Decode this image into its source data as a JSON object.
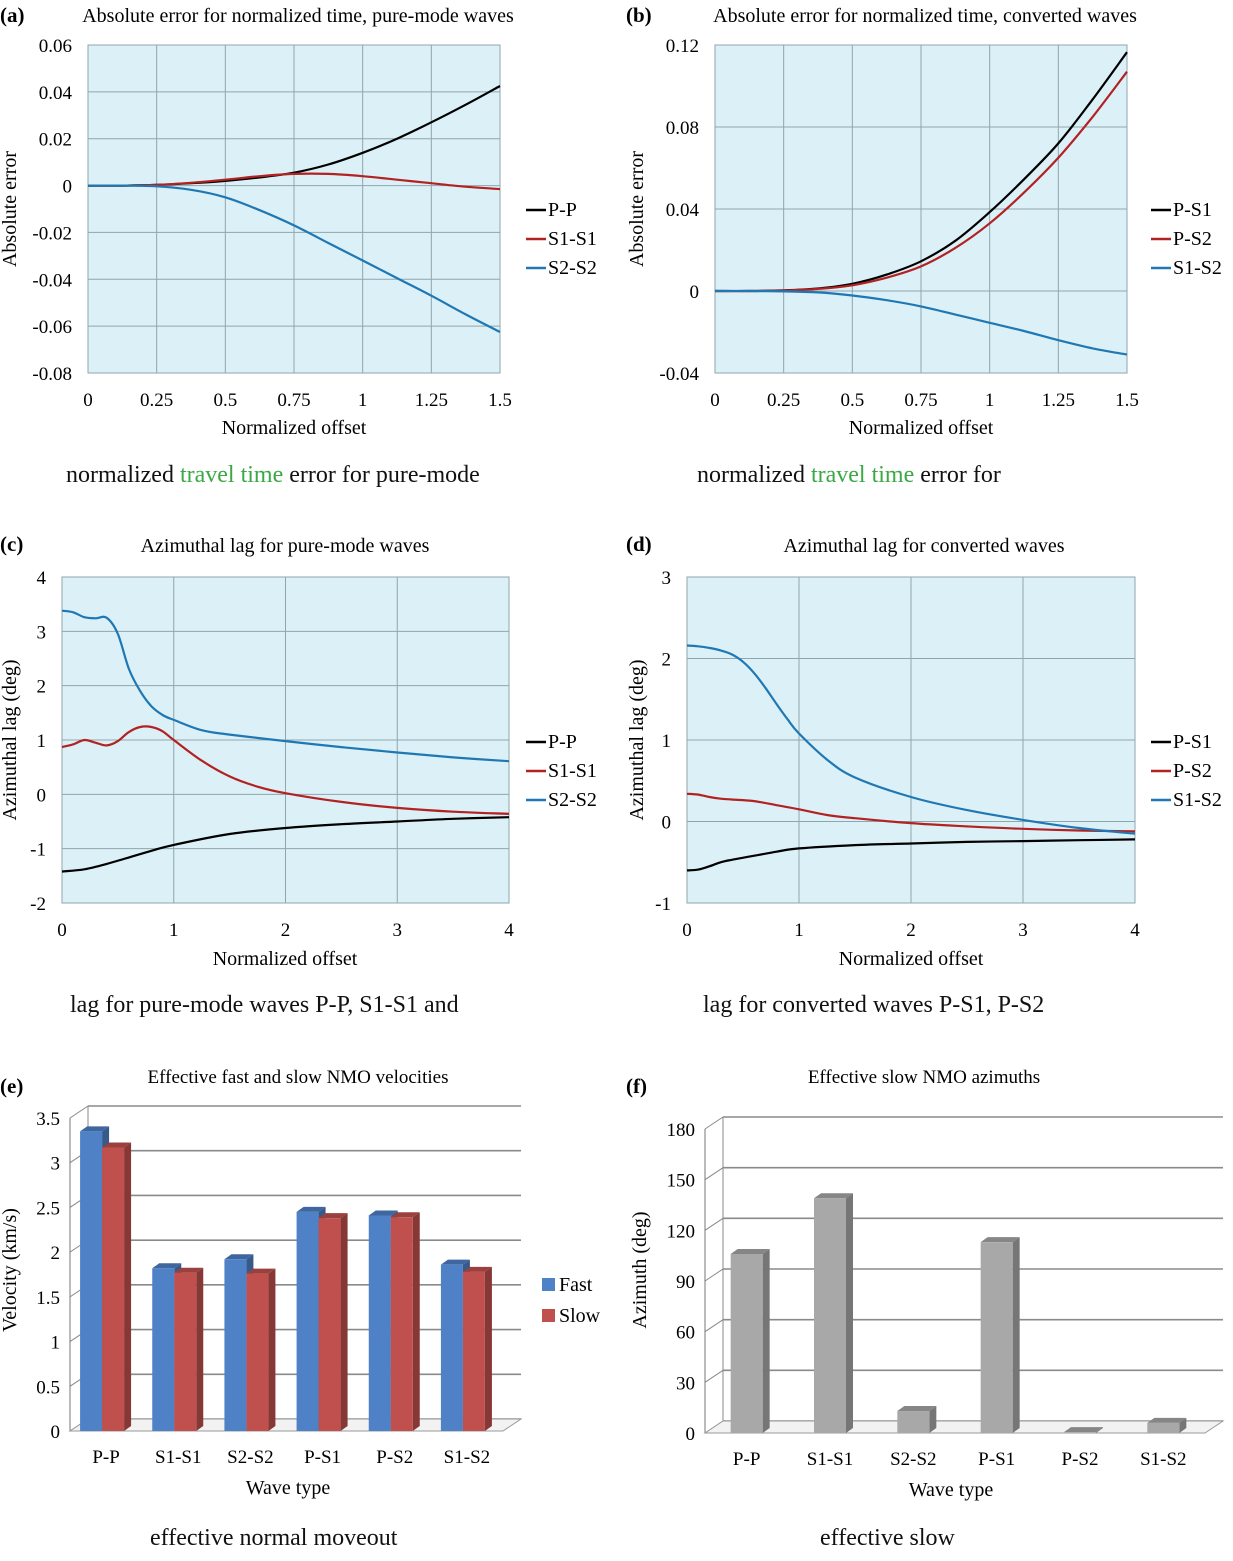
{
  "captions": [
    {
      "pre": "normalized ",
      "hl": "travel time",
      "post": " error for pure-mode"
    },
    {
      "pre": "normalized ",
      "hl": "travel time",
      "post": " error for"
    },
    {
      "pre": "lag for pure-mode waves P-P, S1-S1 and",
      "hl": "",
      "post": ""
    },
    {
      "pre": "lag for converted waves P-S1, P-S2",
      "hl": "",
      "post": ""
    },
    {
      "pre": "effective normal moveout",
      "hl": "",
      "post": ""
    },
    {
      "pre": "effective slow",
      "hl": "",
      "post": ""
    }
  ],
  "colors": {
    "plot_bg": "#dcf0f7",
    "grid": "#8fa6ad",
    "black": "#000000",
    "red": "#b22222",
    "blue": "#1f78b4",
    "fast": "#4f81c7",
    "slow": "#c0504d",
    "gray_bar": "#a8a8a8",
    "highlight": "#3aa845"
  },
  "chart_data": [
    {
      "panel": "(a)",
      "type": "line",
      "title": "Absolute error for normalized time, pure-mode waves",
      "xlabel": "Normalized offset",
      "ylabel": "Absolute error",
      "xlim": [
        0,
        1.5
      ],
      "ylim": [
        -0.08,
        0.06
      ],
      "xticks": [
        "0",
        "0.25",
        "0.5",
        "0.75",
        "1",
        "1.25",
        "1.5"
      ],
      "yticks": [
        "-0.08",
        "-0.06",
        "-0.04",
        "-0.02",
        "0",
        "0.02",
        "0.04",
        "0.06"
      ],
      "legend": "right",
      "grid": true,
      "x": [
        0,
        0.125,
        0.25,
        0.375,
        0.5,
        0.625,
        0.75,
        0.875,
        1.0,
        1.125,
        1.25,
        1.375,
        1.5
      ],
      "series": [
        {
          "name": "P-P",
          "color": "black",
          "values": [
            0,
            0,
            0.0003,
            0.001,
            0.002,
            0.0035,
            0.0055,
            0.009,
            0.014,
            0.02,
            0.027,
            0.0345,
            0.0425
          ]
        },
        {
          "name": "S1-S1",
          "color": "red",
          "values": [
            0,
            0,
            0.0003,
            0.0012,
            0.0025,
            0.004,
            0.005,
            0.005,
            0.004,
            0.0025,
            0.001,
            -0.0005,
            -0.0015
          ]
        },
        {
          "name": "S2-S2",
          "color": "blue",
          "values": [
            0,
            0,
            -0.0003,
            -0.0018,
            -0.005,
            -0.0105,
            -0.017,
            -0.0245,
            -0.032,
            -0.0395,
            -0.047,
            -0.055,
            -0.0625
          ]
        }
      ]
    },
    {
      "panel": "(b)",
      "type": "line",
      "title": "Absolute error for normalized time, converted waves",
      "xlabel": "Normalized offset",
      "ylabel": "Absolute error",
      "xlim": [
        0,
        1.5
      ],
      "ylim": [
        -0.04,
        0.12
      ],
      "xticks": [
        "0",
        "0.25",
        "0.5",
        "0.75",
        "1",
        "1.25",
        "1.5"
      ],
      "yticks": [
        "-0.04",
        "0",
        "0.04",
        "0.08",
        "0.12"
      ],
      "legend": "right",
      "grid": true,
      "x": [
        0,
        0.125,
        0.25,
        0.375,
        0.5,
        0.625,
        0.75,
        0.875,
        1.0,
        1.125,
        1.25,
        1.375,
        1.5
      ],
      "series": [
        {
          "name": "P-S1",
          "color": "black",
          "values": [
            0,
            0,
            0.0003,
            0.0012,
            0.0035,
            0.008,
            0.0145,
            0.0245,
            0.0385,
            0.0545,
            0.072,
            0.0935,
            0.1165
          ]
        },
        {
          "name": "P-S2",
          "color": "red",
          "values": [
            0,
            0,
            0.0002,
            0.001,
            0.0028,
            0.0065,
            0.012,
            0.021,
            0.033,
            0.048,
            0.065,
            0.085,
            0.107
          ]
        },
        {
          "name": "S1-S2",
          "color": "blue",
          "values": [
            0,
            0,
            -0.0002,
            -0.0007,
            -0.0022,
            -0.0045,
            -0.0075,
            -0.0115,
            -0.0155,
            -0.0195,
            -0.024,
            -0.028,
            -0.031
          ]
        }
      ]
    },
    {
      "panel": "(c)",
      "type": "line",
      "title": "Azimuthal lag for pure-mode waves",
      "xlabel": "Normalized offset",
      "ylabel": "Azimuthal lag (deg)",
      "xlim": [
        0,
        4
      ],
      "ylim": [
        -2,
        4
      ],
      "xticks": [
        "0",
        "1",
        "2",
        "3",
        "4"
      ],
      "yticks": [
        "-2",
        "-1",
        "0",
        "1",
        "2",
        "3",
        "4"
      ],
      "legend": "right",
      "grid": true,
      "series": [
        {
          "name": "P-P",
          "color": "black",
          "x": [
            0,
            0.2,
            0.4,
            0.6,
            0.8,
            1.0,
            1.5,
            2.0,
            2.5,
            3.0,
            3.5,
            4.0
          ],
          "values": [
            -1.42,
            -1.38,
            -1.28,
            -1.16,
            -1.04,
            -0.93,
            -0.73,
            -0.62,
            -0.55,
            -0.5,
            -0.45,
            -0.42
          ]
        },
        {
          "name": "S1-S1",
          "color": "red",
          "x": [
            0,
            0.1,
            0.2,
            0.3,
            0.4,
            0.5,
            0.6,
            0.7,
            0.8,
            0.9,
            1.0,
            1.25,
            1.5,
            1.75,
            2.0,
            2.5,
            3.0,
            3.5,
            4.0
          ],
          "values": [
            0.87,
            0.92,
            1.0,
            0.95,
            0.9,
            0.98,
            1.15,
            1.24,
            1.24,
            1.16,
            1.0,
            0.62,
            0.33,
            0.14,
            0.02,
            -0.14,
            -0.25,
            -0.32,
            -0.36
          ]
        },
        {
          "name": "S2-S2",
          "color": "blue",
          "x": [
            0,
            0.1,
            0.2,
            0.3,
            0.4,
            0.5,
            0.6,
            0.7,
            0.8,
            0.9,
            1.0,
            1.25,
            1.5,
            2.0,
            2.5,
            3.0,
            3.5,
            4.0
          ],
          "values": [
            3.38,
            3.35,
            3.26,
            3.24,
            3.25,
            2.95,
            2.3,
            1.9,
            1.62,
            1.46,
            1.37,
            1.18,
            1.1,
            0.98,
            0.87,
            0.77,
            0.68,
            0.61
          ]
        }
      ]
    },
    {
      "panel": "(d)",
      "type": "line",
      "title": "Azimuthal lag for converted waves",
      "xlabel": "Normalized offset",
      "ylabel": "Azimuthal lag (deg)",
      "xlim": [
        0,
        4
      ],
      "ylim": [
        -1,
        3
      ],
      "xticks": [
        "0",
        "1",
        "2",
        "3",
        "4"
      ],
      "yticks": [
        "-1",
        "0",
        "1",
        "2",
        "3"
      ],
      "legend": "right",
      "grid": true,
      "series": [
        {
          "name": "P-S1",
          "color": "black",
          "x": [
            0,
            0.1,
            0.2,
            0.3,
            0.4,
            0.6,
            0.8,
            1.0,
            1.5,
            2.0,
            2.5,
            3.0,
            3.5,
            4.0
          ],
          "values": [
            -0.6,
            -0.59,
            -0.55,
            -0.5,
            -0.47,
            -0.42,
            -0.37,
            -0.33,
            -0.29,
            -0.27,
            -0.25,
            -0.24,
            -0.23,
            -0.22
          ]
        },
        {
          "name": "P-S2",
          "color": "red",
          "x": [
            0,
            0.1,
            0.2,
            0.3,
            0.4,
            0.6,
            0.8,
            1.0,
            1.25,
            1.5,
            2.0,
            2.5,
            3.0,
            3.5,
            4.0
          ],
          "values": [
            0.34,
            0.33,
            0.3,
            0.28,
            0.27,
            0.25,
            0.2,
            0.15,
            0.08,
            0.04,
            -0.02,
            -0.06,
            -0.09,
            -0.11,
            -0.12
          ]
        },
        {
          "name": "S1-S2",
          "color": "blue",
          "x": [
            0,
            0.1,
            0.2,
            0.3,
            0.4,
            0.5,
            0.6,
            0.7,
            0.8,
            0.9,
            1.0,
            1.25,
            1.5,
            2.0,
            2.5,
            3.0,
            3.5,
            4.0
          ],
          "values": [
            2.16,
            2.15,
            2.13,
            2.1,
            2.05,
            1.96,
            1.82,
            1.64,
            1.44,
            1.25,
            1.08,
            0.76,
            0.54,
            0.3,
            0.14,
            0.02,
            -0.08,
            -0.15
          ]
        }
      ]
    },
    {
      "panel": "(e)",
      "type": "bar",
      "title": "Effective fast and slow NMO velocities",
      "xlabel": "Wave type",
      "ylabel": "Velocity (km/s)",
      "ylim": [
        0,
        3.5
      ],
      "yticks": [
        "0",
        "0.5",
        "1",
        "1.5",
        "2",
        "2.5",
        "3",
        "3.5"
      ],
      "legend": "right",
      "categories": [
        "P-P",
        "S1-S1",
        "S2-S2",
        "P-S1",
        "P-S2",
        "S1-S2"
      ],
      "series": [
        {
          "name": "Fast",
          "color": "fast",
          "values": [
            3.35,
            1.82,
            1.92,
            2.45,
            2.41,
            1.86
          ]
        },
        {
          "name": "Slow",
          "color": "slow",
          "values": [
            3.17,
            1.77,
            1.76,
            2.38,
            2.39,
            1.78
          ]
        }
      ]
    },
    {
      "panel": "(f)",
      "type": "bar",
      "title": "Effective slow NMO azimuths",
      "xlabel": "Wave type",
      "ylabel": "Azimuth (deg)",
      "ylim": [
        0,
        180
      ],
      "yticks": [
        "0",
        "30",
        "60",
        "90",
        "120",
        "150",
        "180"
      ],
      "categories": [
        "P-P",
        "S1-S1",
        "S2-S2",
        "P-S1",
        "P-S2",
        "S1-S2"
      ],
      "series": [
        {
          "name": "",
          "color": "gray_bar",
          "values": [
            106,
            139,
            13,
            113,
            0.5,
            6
          ]
        }
      ]
    }
  ]
}
